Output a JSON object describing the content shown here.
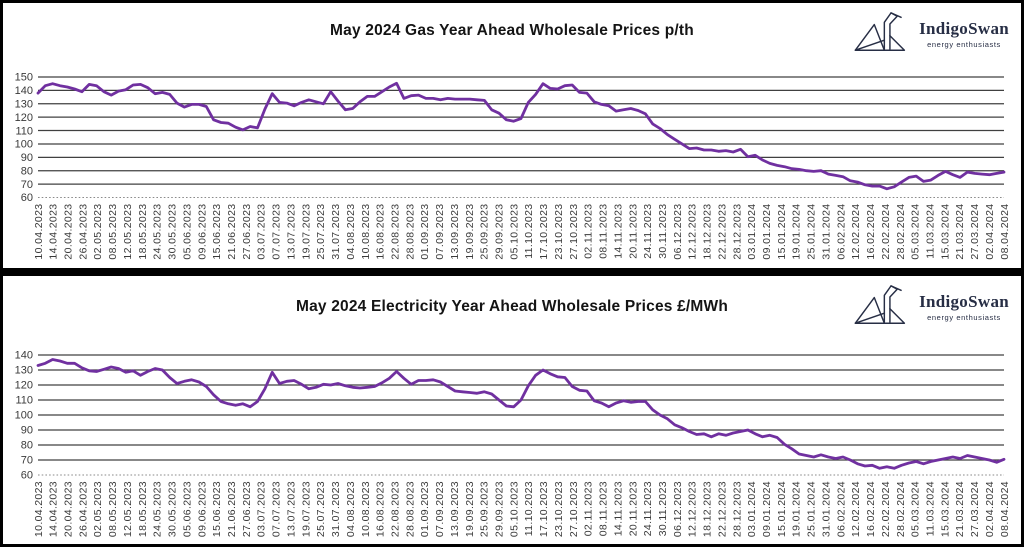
{
  "logo": {
    "name": "IndigoSwan",
    "tagline": "energy enthusiasts",
    "color": "#272e45"
  },
  "frame_color": "#000000",
  "chart_data": [
    {
      "type": "line",
      "title": "May 2024 Gas Year Ahead Wholesale Prices p/th",
      "unit": "p/th",
      "line_color": "#7030a0",
      "grid": true,
      "legend": "none",
      "ylim": [
        60,
        150
      ],
      "yticks": [
        150,
        140,
        130,
        120,
        110,
        100,
        90,
        80,
        70,
        60
      ],
      "x_labels": [
        "10.04.2023",
        "14.04.2023",
        "20.04.2023",
        "26.04.2023",
        "02.05.2023",
        "08.05.2023",
        "12.05.2023",
        "18.05.2023",
        "24.05.2023",
        "30.05.2023",
        "05.06.2023",
        "09.06.2023",
        "15.06.2023",
        "21.06.2023",
        "27.06.2023",
        "03.07.2023",
        "07.07.2023",
        "13.07.2023",
        "19.07.2023",
        "25.07.2023",
        "31.07.2023",
        "04.08.2023",
        "10.08.2023",
        "16.08.2023",
        "22.08.2023",
        "28.08.2023",
        "01.09.2023",
        "07.09.2023",
        "13.09.2023",
        "19.09.2023",
        "25.09.2023",
        "29.09.2023",
        "05.10.2023",
        "11.10.2023",
        "17.10.2023",
        "23.10.2023",
        "27.10.2023",
        "02.11.2023",
        "08.11.2023",
        "14.11.2023",
        "20.11.2023",
        "24.11.2023",
        "30.11.2023",
        "06.12.2023",
        "12.12.2023",
        "18.12.2023",
        "22.12.2023",
        "28.12.2023",
        "03.01.2024",
        "09.01.2024",
        "15.01.2024",
        "19.01.2024",
        "25.01.2024",
        "31.01.2024",
        "06.02.2024",
        "12.02.2024",
        "16.02.2024",
        "22.02.2024",
        "28.02.2024",
        "05.03.2024",
        "11.03.2024",
        "15.03.2024",
        "21.03.2024",
        "27.03.2024",
        "02.04.2024",
        "08.04.2024"
      ],
      "values": [
        138,
        143.5,
        145,
        143.5,
        142.5,
        141,
        139,
        144.5,
        143.5,
        139,
        136.5,
        139.5,
        140.5,
        144,
        144.5,
        142,
        137.5,
        138.5,
        137,
        130.5,
        127.5,
        129.5,
        129.5,
        128,
        118,
        116,
        115.5,
        112.5,
        110.5,
        113,
        112,
        126,
        137.5,
        131,
        130.5,
        128.5,
        131,
        133,
        131.5,
        130,
        139,
        132,
        125.5,
        126.5,
        131.5,
        135.5,
        135.5,
        139,
        142.5,
        145.3,
        134,
        136,
        136.5,
        134,
        134,
        133,
        134,
        133.5,
        133.5,
        133.5,
        133,
        132.5,
        125.5,
        123,
        118,
        117,
        119,
        131,
        137,
        145,
        141.5,
        141,
        143.5,
        144,
        138.5,
        138,
        131.5,
        129.5,
        128.5,
        124.5,
        125.5,
        126.5,
        125,
        122.5,
        115,
        111.5,
        107,
        103.5,
        100,
        96.5,
        97,
        95.5,
        95.5,
        94.5,
        95,
        94,
        96,
        90.5,
        91.5,
        88,
        85.5,
        84,
        83,
        81.5,
        81,
        80,
        79.5,
        80,
        77.5,
        76.5,
        75.5,
        72.5,
        71.5,
        69.5,
        68.5,
        68.5,
        66.5,
        68,
        71.5,
        75,
        76,
        72,
        73,
        76.5,
        79.5,
        77,
        75,
        79,
        78,
        77.5,
        77,
        78,
        79
      ]
    },
    {
      "type": "line",
      "title": "May 2024 Electricity Year Ahead Wholesale Prices £/MWh",
      "unit": "£/MWh",
      "line_color": "#7030a0",
      "grid": true,
      "legend": "none",
      "ylim": [
        60,
        140
      ],
      "yticks": [
        140,
        130,
        120,
        110,
        100,
        90,
        80,
        70,
        60
      ],
      "x_labels": [
        "10.04.2023",
        "14.04.2023",
        "20.04.2023",
        "26.04.2023",
        "02.05.2023",
        "08.05.2023",
        "12.05.2023",
        "18.05.2023",
        "24.05.2023",
        "30.05.2023",
        "05.06.2023",
        "09.06.2023",
        "15.06.2023",
        "21.06.2023",
        "27.06.2023",
        "03.07.2023",
        "07.07.2023",
        "13.07.2023",
        "19.07.2023",
        "25.07.2023",
        "31.07.2023",
        "04.08.2023",
        "10.08.2023",
        "16.08.2023",
        "22.08.2023",
        "28.08.2023",
        "01.09.2023",
        "07.09.2023",
        "13.09.2023",
        "19.09.2023",
        "25.09.2023",
        "29.09.2023",
        "05.10.2023",
        "11.10.2023",
        "17.10.2023",
        "23.10.2023",
        "27.10.2023",
        "02.11.2023",
        "08.11.2023",
        "14.11.2023",
        "20.11.2023",
        "24.11.2023",
        "30.11.2023",
        "06.12.2023",
        "12.12.2023",
        "18.12.2023",
        "22.12.2023",
        "28.12.2023",
        "03.01.2024",
        "09.01.2024",
        "15.01.2024",
        "19.01.2024",
        "25.01.2024",
        "31.01.2024",
        "06.02.2024",
        "12.02.2024",
        "16.02.2024",
        "22.02.2024",
        "28.02.2024",
        "05.03.2024",
        "11.03.2024",
        "15.03.2024",
        "21.03.2024",
        "27.03.2024",
        "02.04.2024",
        "08.04.2024"
      ],
      "values": [
        133,
        134.5,
        137,
        136,
        134.5,
        134.5,
        131.5,
        129.5,
        129,
        130.5,
        132,
        131,
        128.5,
        129.5,
        126.5,
        129,
        131,
        130,
        125,
        121,
        122.5,
        123.5,
        122,
        119,
        113.5,
        109,
        107.5,
        106.5,
        107.5,
        105.5,
        109,
        117.5,
        128.5,
        121,
        122.5,
        123,
        120.5,
        117.5,
        118.5,
        120.5,
        120,
        121,
        119.5,
        118.5,
        118,
        118.5,
        119,
        121.5,
        124.5,
        129,
        124.5,
        120.5,
        123,
        123,
        123.5,
        122,
        119,
        116,
        115.5,
        115,
        114.5,
        115.5,
        114,
        110,
        106,
        105.5,
        110,
        119.5,
        126.5,
        130,
        127.5,
        125.5,
        125,
        119,
        116.5,
        116,
        109.5,
        108,
        105.5,
        108,
        109.5,
        108.5,
        109,
        109,
        103.5,
        100,
        97.5,
        93.5,
        91.5,
        89,
        87,
        87.5,
        85.5,
        87.5,
        86.5,
        88,
        89,
        90,
        87.5,
        85.5,
        86.5,
        85,
        80.5,
        77.5,
        74,
        73,
        72,
        73.5,
        72,
        71,
        72,
        70,
        67.5,
        66,
        66.5,
        64.5,
        65.5,
        64.5,
        66.5,
        68,
        69,
        67.5,
        69,
        70,
        71,
        72,
        71,
        73,
        72,
        71,
        70,
        68.5,
        70.5
      ]
    }
  ]
}
